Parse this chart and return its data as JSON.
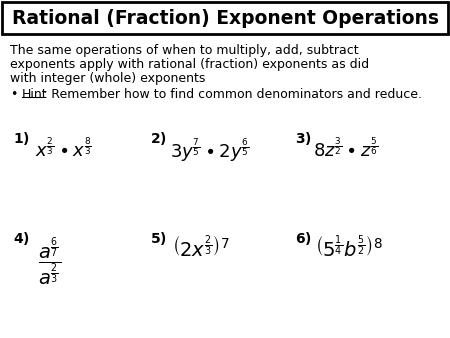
{
  "title": "Rational (Fraction) Exponent Operations",
  "bg_color": "#ffffff",
  "body_text_1": "The same operations of when to multiply, add, subtract",
  "body_text_2": "exponents apply with rational (fraction) exponents as did",
  "body_text_3": "with integer (whole) exponents",
  "hint_rest": ": Remember how to find common denominators and reduce."
}
